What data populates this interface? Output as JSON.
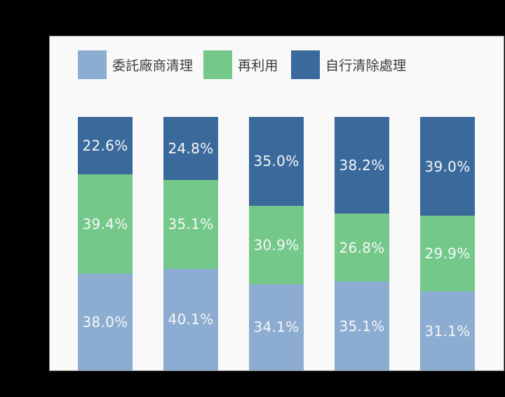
{
  "page": {
    "background": "#000000"
  },
  "panel": {
    "background": "#f9f9f9",
    "border_color": "#8c8c8c"
  },
  "chart_data": {
    "type": "bar",
    "stacked": true,
    "orientation": "vertical",
    "n_bars": 5,
    "ylim": [
      0,
      100
    ],
    "unit": "%",
    "grid": false,
    "axes_visible": false,
    "legend_position": "top-left",
    "series": [
      {
        "name": "委託廠商清理",
        "color": "#8cacd2",
        "values": [
          38.0,
          40.1,
          34.1,
          35.1,
          31.1
        ]
      },
      {
        "name": "再利用",
        "color": "#74c98a",
        "values": [
          39.4,
          35.1,
          30.9,
          26.8,
          29.9
        ]
      },
      {
        "name": "自行清除處理",
        "color": "#3a699b",
        "values": [
          22.6,
          24.8,
          35.0,
          38.2,
          39.0
        ]
      }
    ],
    "bar_labels": [
      [
        "38.0%",
        "40.1%",
        "34.1%",
        "35.1%",
        "31.1%"
      ],
      [
        "39.4%",
        "35.1%",
        "30.9%",
        "26.8%",
        "29.9%"
      ],
      [
        "22.6%",
        "24.8%",
        "35.0%",
        "38.2%",
        "39.0%"
      ]
    ],
    "label_color": "#f7f7f7"
  }
}
